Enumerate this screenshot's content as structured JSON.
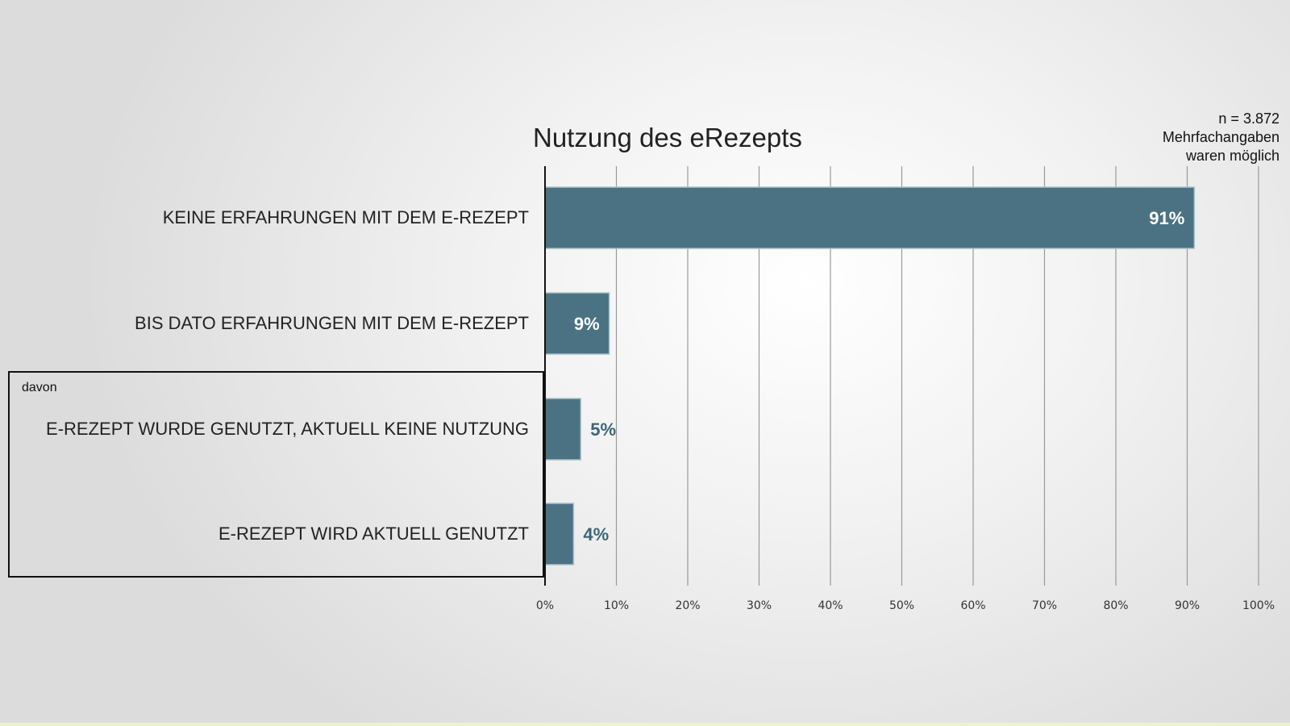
{
  "chart_data": {
    "type": "bar",
    "orientation": "horizontal",
    "title": "Nutzung des eRezepts",
    "annotation": [
      "n = 3.872",
      "Mehrfachangaben",
      "waren möglich"
    ],
    "group_label": "davon",
    "categories": [
      "KEINE ERFAHRUNGEN MIT DEM E-REZEPT",
      "BIS DATO ERFAHRUNGEN MIT DEM E-REZEPT",
      "E-REZEPT WURDE GENUTZT, AKTUELL KEINE NUTZUNG",
      "E-REZEPT WIRD AKTUELL GENUTZT"
    ],
    "values": [
      91,
      9,
      5,
      4
    ],
    "value_labels": [
      "91%",
      "9%",
      "5%",
      "4%"
    ],
    "xlim": [
      0,
      100
    ],
    "x_ticks": [
      "0%",
      "10%",
      "20%",
      "30%",
      "40%",
      "50%",
      "60%",
      "70%",
      "80%",
      "90%",
      "100%"
    ],
    "grid": "vertical",
    "colors": {
      "bar": "#4a7282",
      "bar_edge": "#a9c2cb",
      "label_inside": "#ffffff",
      "label_outside": "#3c6677",
      "gridline": "#9a9a9a",
      "axis": "#111111"
    }
  }
}
